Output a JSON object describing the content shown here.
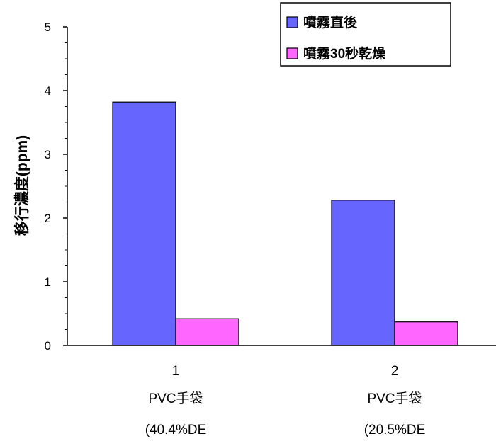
{
  "chart_data": {
    "type": "bar",
    "categories": [
      "1",
      "2"
    ],
    "category_lines": [
      [
        "1",
        "PVC手袋",
        "(40.4%DE"
      ],
      [
        "2",
        "PVC手袋",
        "(20.5%DE"
      ]
    ],
    "series": [
      {
        "name": "噴霧直後",
        "values": [
          3.82,
          2.28
        ],
        "color": "#6666ff"
      },
      {
        "name": "噴霧30秒乾燥",
        "values": [
          0.42,
          0.37
        ],
        "color": "#ff66ff"
      }
    ],
    "ylabel": "移行濃度(ppm)",
    "xlabel": "",
    "ylim": [
      0,
      5
    ],
    "yticks": [
      0,
      1,
      2,
      3,
      4,
      5
    ],
    "legend_position": "top-right",
    "grid": false
  }
}
